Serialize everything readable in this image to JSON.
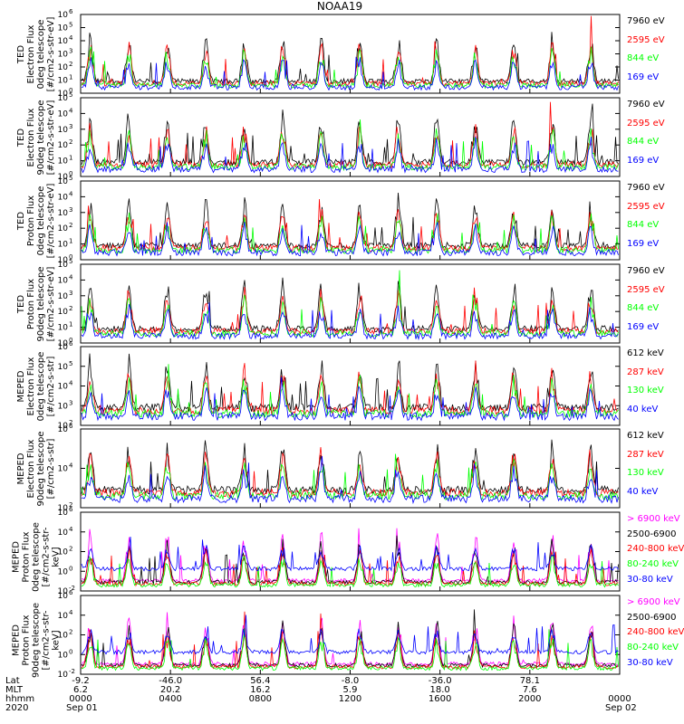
{
  "title": "NOAA19",
  "chart_data": {
    "type": "line",
    "panels": [
      {
        "ylabel_lines": [
          "TED",
          "Electron Flux",
          "0deg telescope",
          "[#/cm2-s-str-eV]"
        ],
        "ylim": [
          1,
          1000000
        ],
        "scale": "log",
        "ticks": [
          {
            "base": "10",
            "exp": "0"
          },
          {
            "base": "10",
            "exp": "1"
          },
          {
            "base": "10",
            "exp": "2"
          },
          {
            "base": "10",
            "exp": "3"
          },
          {
            "base": "10",
            "exp": "4"
          },
          {
            "base": "10",
            "exp": "5"
          },
          {
            "base": "10",
            "exp": "6"
          }
        ],
        "series": [
          {
            "name": "7960 eV",
            "color": "#000000"
          },
          {
            "name": "2595 eV",
            "color": "#ff0000"
          },
          {
            "name": "844 eV",
            "color": "#00ff00"
          },
          {
            "name": "169 eV",
            "color": "#0000ff"
          }
        ]
      },
      {
        "ylabel_lines": [
          "TED",
          "Electron Flux",
          "90deg telescope",
          "[#/cm2-s-str-eV]"
        ],
        "ylim": [
          1,
          100000
        ],
        "scale": "log",
        "ticks": [
          {
            "base": "10",
            "exp": "0"
          },
          {
            "base": "10",
            "exp": "1"
          },
          {
            "base": "10",
            "exp": "2"
          },
          {
            "base": "10",
            "exp": "3"
          },
          {
            "base": "10",
            "exp": "4"
          },
          {
            "base": "10",
            "exp": "5"
          }
        ],
        "series": [
          {
            "name": "7960 eV",
            "color": "#000000"
          },
          {
            "name": "2595 eV",
            "color": "#ff0000"
          },
          {
            "name": "844 eV",
            "color": "#00ff00"
          },
          {
            "name": "169 eV",
            "color": "#0000ff"
          }
        ]
      },
      {
        "ylabel_lines": [
          "TED",
          "Proton Flux",
          "0deg telescope",
          "[#/cm2-s-str-eV]"
        ],
        "ylim": [
          1,
          100000
        ],
        "scale": "log",
        "ticks": [
          {
            "base": "10",
            "exp": "0"
          },
          {
            "base": "10",
            "exp": "1"
          },
          {
            "base": "10",
            "exp": "2"
          },
          {
            "base": "10",
            "exp": "3"
          },
          {
            "base": "10",
            "exp": "4"
          },
          {
            "base": "10",
            "exp": "5"
          }
        ],
        "series": [
          {
            "name": "7960 eV",
            "color": "#000000"
          },
          {
            "name": "2595 eV",
            "color": "#ff0000"
          },
          {
            "name": "844 eV",
            "color": "#00ff00"
          },
          {
            "name": "169 eV",
            "color": "#0000ff"
          }
        ]
      },
      {
        "ylabel_lines": [
          "TED",
          "Proton Flux",
          "90deg telescope",
          "[#/cm2-s-str-eV]"
        ],
        "ylim": [
          1,
          100000
        ],
        "scale": "log",
        "ticks": [
          {
            "base": "10",
            "exp": "0"
          },
          {
            "base": "10",
            "exp": "1"
          },
          {
            "base": "10",
            "exp": "2"
          },
          {
            "base": "10",
            "exp": "3"
          },
          {
            "base": "10",
            "exp": "4"
          },
          {
            "base": "10",
            "exp": "5"
          }
        ],
        "series": [
          {
            "name": "7960 eV",
            "color": "#000000"
          },
          {
            "name": "2595 eV",
            "color": "#ff0000"
          },
          {
            "name": "844 eV",
            "color": "#00ff00"
          },
          {
            "name": "169 eV",
            "color": "#0000ff"
          }
        ]
      },
      {
        "ylabel_lines": [
          "MEPED",
          "Electron Flux",
          "0deg telescope",
          "[#/cm2-s-str]"
        ],
        "ylim": [
          100,
          1000000
        ],
        "scale": "log",
        "ticks": [
          {
            "base": "10",
            "exp": "2"
          },
          {
            "base": "10",
            "exp": "3"
          },
          {
            "base": "10",
            "exp": "4"
          },
          {
            "base": "10",
            "exp": "5"
          },
          {
            "base": "10",
            "exp": "6"
          }
        ],
        "series": [
          {
            "name": "612 keV",
            "color": "#000000"
          },
          {
            "name": "287 keV",
            "color": "#ff0000"
          },
          {
            "name": "130 keV",
            "color": "#00ff00"
          },
          {
            "name": "40 keV",
            "color": "#0000ff"
          }
        ]
      },
      {
        "ylabel_lines": [
          "MEPED",
          "Electron Flux",
          "90deg telescope",
          "[#/cm2-s-str]"
        ],
        "ylim": [
          100,
          1000000
        ],
        "scale": "log",
        "ticks": [
          {
            "base": "10",
            "exp": "2"
          },
          {
            "base": "10",
            "exp": "4"
          },
          {
            "base": "10",
            "exp": "6"
          }
        ],
        "series": [
          {
            "name": "612 keV",
            "color": "#000000"
          },
          {
            "name": "287 keV",
            "color": "#ff0000"
          },
          {
            "name": "130 keV",
            "color": "#00ff00"
          },
          {
            "name": "40 keV",
            "color": "#0000ff"
          }
        ]
      },
      {
        "ylabel_lines": [
          "MEPED",
          "Proton Flux",
          "0deg telescope",
          "[#/cm2-s-str-keV]"
        ],
        "ylim": [
          0.01,
          1000000
        ],
        "scale": "log",
        "ticks": [
          {
            "base": "10",
            "exp": "-2"
          },
          {
            "base": "10",
            "exp": "0"
          },
          {
            "base": "10",
            "exp": "2"
          },
          {
            "base": "10",
            "exp": "4"
          },
          {
            "base": "10",
            "exp": "6"
          }
        ],
        "series": [
          {
            "name": "> 6900 keV",
            "color": "#ff00ff"
          },
          {
            "name": "2500-6900",
            "color": "#000000"
          },
          {
            "name": "240-800 keV",
            "color": "#ff0000"
          },
          {
            "name": "80-240 keV",
            "color": "#00ff00"
          },
          {
            "name": "30-80 keV",
            "color": "#0000ff"
          }
        ]
      },
      {
        "ylabel_lines": [
          "MEPED",
          "Proton Flux",
          "90deg telescope",
          "[#/cm2-s-str-keV]"
        ],
        "ylim": [
          0.01,
          1000000
        ],
        "scale": "log",
        "ticks": [
          {
            "base": "10",
            "exp": "-2"
          },
          {
            "base": "10",
            "exp": "0"
          },
          {
            "base": "10",
            "exp": "2"
          },
          {
            "base": "10",
            "exp": "4"
          },
          {
            "base": "10",
            "exp": "6"
          }
        ],
        "series": [
          {
            "name": "> 6900 keV",
            "color": "#ff00ff"
          },
          {
            "name": "2500-6900",
            "color": "#000000"
          },
          {
            "name": "240-800 keV",
            "color": "#ff0000"
          },
          {
            "name": "80-240 keV",
            "color": "#00ff00"
          },
          {
            "name": "30-80 keV",
            "color": "#0000ff"
          }
        ]
      }
    ],
    "xaxis": {
      "row_labels": [
        "Lat",
        "MLT",
        "hhmm",
        "2020"
      ],
      "ticks": [
        {
          "lat": "-9.2",
          "mlt": "6.2",
          "hhmm": "0000",
          "date": "Sep 01"
        },
        {
          "lat": "-46.0",
          "mlt": "20.2",
          "hhmm": "0400",
          "date": ""
        },
        {
          "lat": "56.4",
          "mlt": "16.2",
          "hhmm": "0800",
          "date": ""
        },
        {
          "lat": "-8.0",
          "mlt": "5.9",
          "hhmm": "1200",
          "date": ""
        },
        {
          "lat": "-36.0",
          "mlt": "18.0",
          "hhmm": "1600",
          "date": ""
        },
        {
          "lat": "78.1",
          "mlt": "7.6",
          "hhmm": "2000",
          "date": ""
        },
        {
          "lat": "",
          "mlt": "",
          "hhmm": "0000",
          "date": "Sep 02"
        }
      ]
    }
  }
}
